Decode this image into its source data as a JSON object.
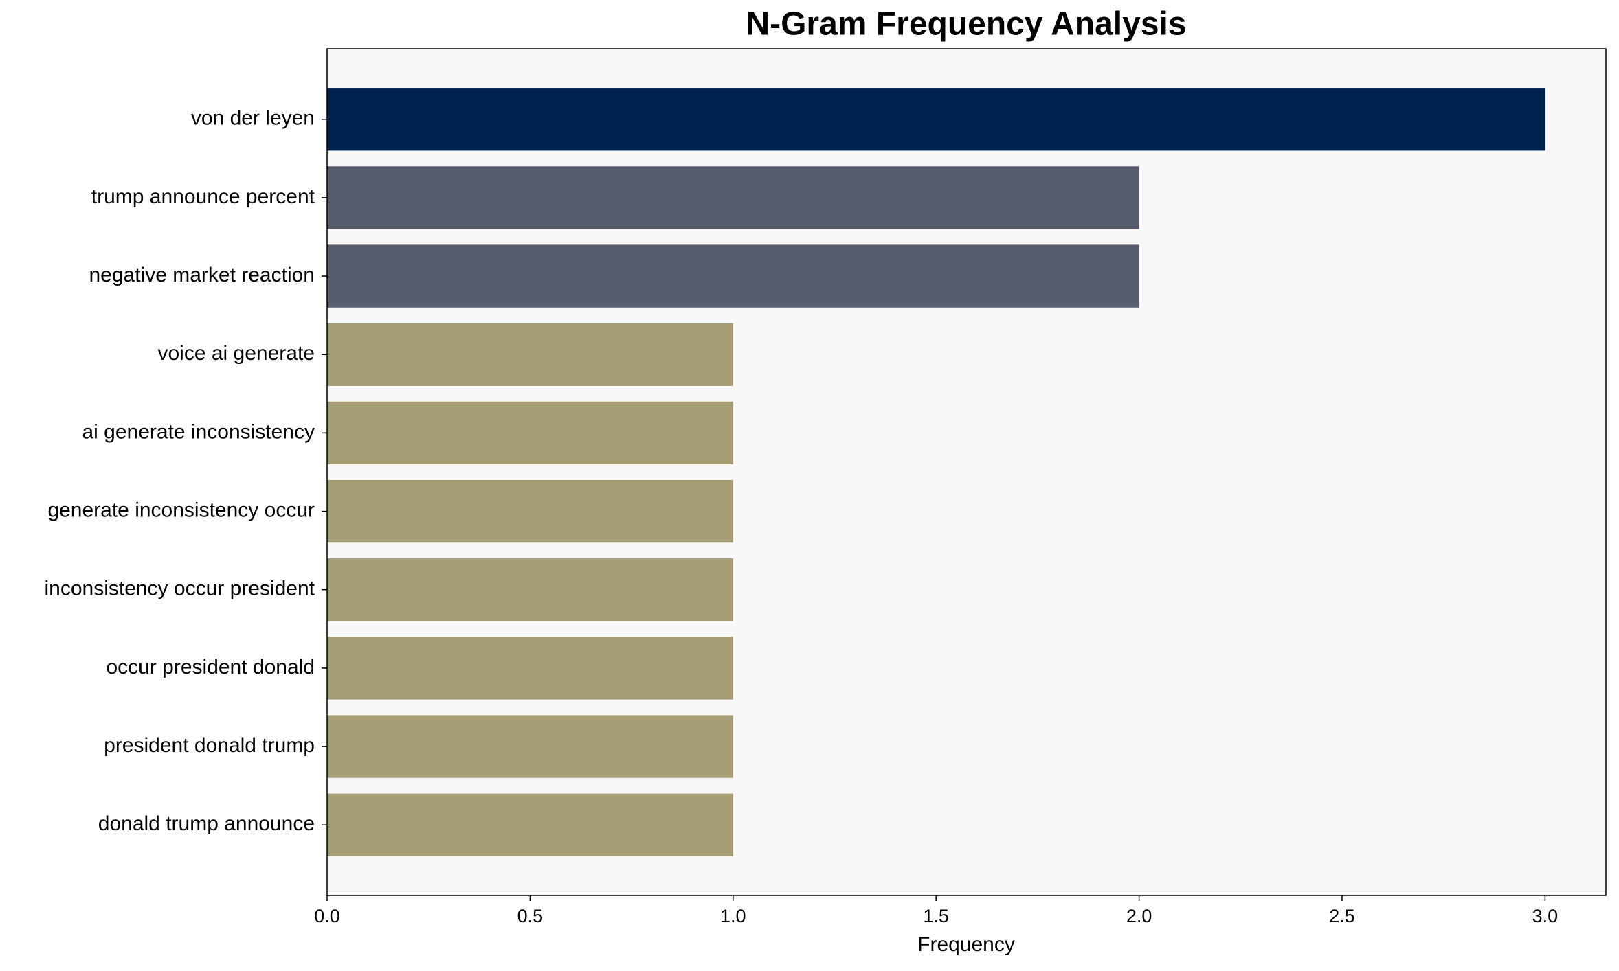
{
  "chart_data": {
    "type": "barh",
    "title": "N-Gram Frequency Analysis",
    "xlabel": "Frequency",
    "categories": [
      "von der leyen",
      "trump announce percent",
      "negative market reaction",
      "voice ai generate",
      "ai generate inconsistency",
      "generate inconsistency occur",
      "inconsistency occur president",
      "occur president donald",
      "president donald trump",
      "donald trump announce"
    ],
    "values": [
      3,
      2,
      2,
      1,
      1,
      1,
      1,
      1,
      1,
      1
    ],
    "colors": [
      "#00224e",
      "#575d6d",
      "#575d6d",
      "#a69d75",
      "#a69d75",
      "#a69d75",
      "#a69d75",
      "#a69d75",
      "#a69d75",
      "#a69d75"
    ],
    "xlim": [
      0,
      3.15
    ],
    "xticks": [
      {
        "value": 0,
        "label": "0.0"
      },
      0.5,
      {
        "value": 1,
        "label": "1.0"
      },
      1.5,
      {
        "value": 2,
        "label": "2.0"
      },
      2.5,
      {
        "value": 3,
        "label": "3.0"
      }
    ],
    "grid": false
  }
}
